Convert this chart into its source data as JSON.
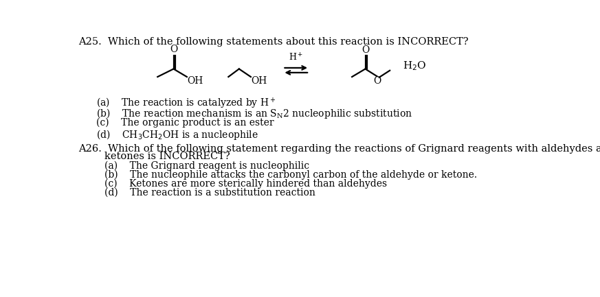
{
  "background_color": "#ffffff",
  "fig_width": 8.73,
  "fig_height": 4.33,
  "dpi": 100,
  "text_color": "#000000",
  "font_size_main": 10.5,
  "font_size_chem": 10.0,
  "font_size_label": 10.0,
  "q25_title": "A25.  Which of the following statements about this reaction is INCORRECT?",
  "q25_a": "(a)    The reaction is catalyzed by H$^+$",
  "q25_b_pre": "(b)    The reaction mechanism is an S",
  "q25_b_sub": "N",
  "q25_b_post": "2 nucleophilic substitution",
  "q25_c": "(c)    The organic product is an ester",
  "q25_d": "(d)    CH$_3$CH$_2$OH is a nucleophile",
  "q26_title1": "A26.  Which of the following statement regarding the reactions of Grignard reagents with aldehydes and",
  "q26_title2": "        ketones is INCORRECT?",
  "q26_a": "(a)    The Grignard reagent is nucleophilic",
  "q26_b": "(b)    The nucleophile attacks the carbonyl carbon of the aldehyde or ketone.",
  "q26_c": "(c)    Ketones are more sterically hindered than aldehydes",
  "q26_d": "(d)    The reaction is a substitution reaction"
}
